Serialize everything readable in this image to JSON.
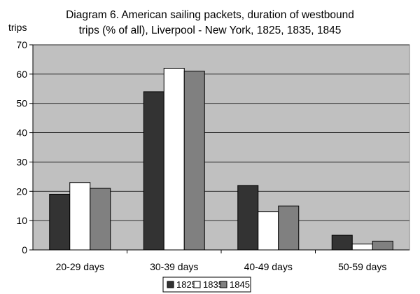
{
  "chart_data": {
    "type": "bar",
    "title_lines": [
      "Diagram 6. American sailing packets, duration of westbound",
      "trips (% of all), Liverpool - New York, 1825, 1835, 1845"
    ],
    "ylabel": "trips",
    "xlabel": "",
    "categories": [
      "20-29 days",
      "30-39 days",
      "40-49 days",
      "50-59 days"
    ],
    "series": [
      {
        "name": "1825",
        "color": "#333333",
        "values": [
          19,
          54,
          22,
          5
        ]
      },
      {
        "name": "1835",
        "color": "#ffffff",
        "values": [
          23,
          62,
          13,
          2
        ]
      },
      {
        "name": "1845",
        "color": "#808080",
        "values": [
          21,
          61,
          15,
          3
        ]
      }
    ],
    "ylim": [
      0,
      70
    ],
    "yticks": [
      0,
      10,
      20,
      30,
      40,
      50,
      60,
      70
    ],
    "grid": true,
    "plot_background": "#c0c0c0",
    "legend_position": "bottom-center"
  }
}
